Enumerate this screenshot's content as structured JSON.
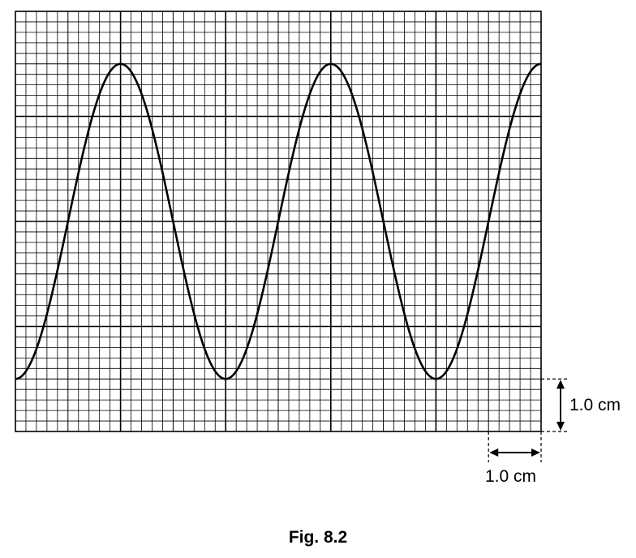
{
  "figure": {
    "caption": "Fig. 8.2",
    "vertical_scale_label": "1.0 cm",
    "horizontal_scale_label": "1.0 cm"
  },
  "chart_data": {
    "type": "line",
    "title": "",
    "xlabel": "",
    "ylabel": "",
    "grid": true,
    "grid_major_cm": 1.0,
    "grid_minor_cm": 0.2,
    "xlim": [
      0,
      10
    ],
    "ylim": [
      0,
      8
    ],
    "series": [
      {
        "function": "sine",
        "amplitude": 3.0,
        "centre": 4.0,
        "period": 4.0,
        "x_start": 0,
        "x_end": 10,
        "first_peak_x": 2.0,
        "peak_y": 7.0,
        "trough_y": 1.0
      }
    ]
  }
}
